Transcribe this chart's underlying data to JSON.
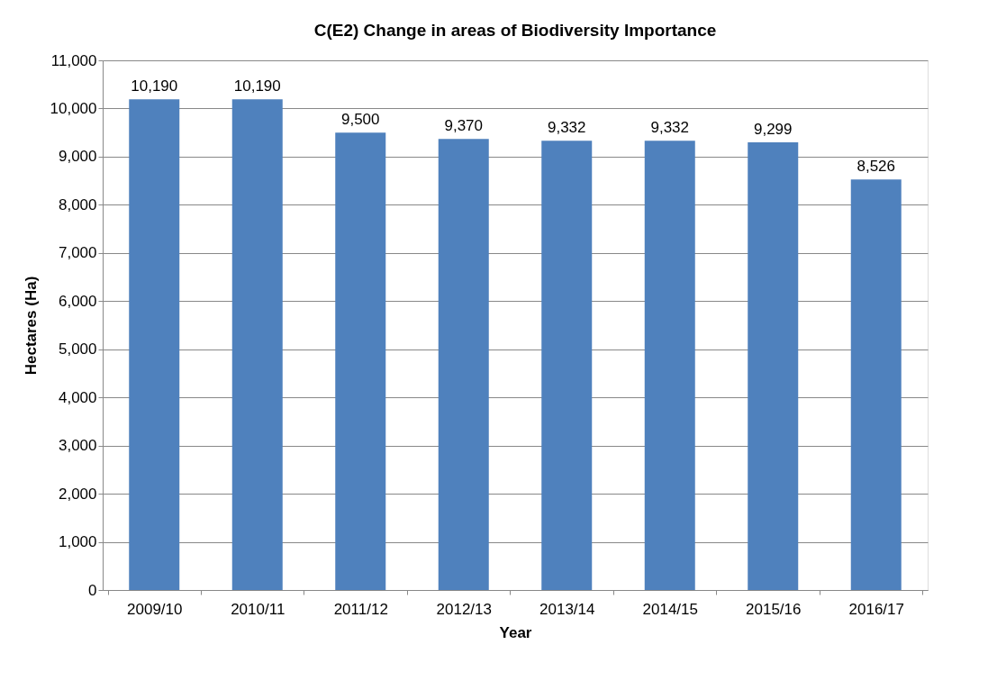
{
  "chart_data": {
    "type": "bar",
    "title": "C(E2) Change in areas of Biodiversity Importance",
    "xlabel": "Year",
    "ylabel": "Hectares (Ha)",
    "categories": [
      "2009/10",
      "2010/11",
      "2011/12",
      "2012/13",
      "2013/14",
      "2014/15",
      "2015/16",
      "2016/17"
    ],
    "values": [
      10190,
      10190,
      9500,
      9370,
      9332,
      9332,
      9299,
      8526
    ],
    "color": "#4f81bd",
    "ylim": [
      0,
      11000
    ],
    "yticks": [
      {
        "value": 0,
        "label": "0"
      },
      {
        "value": 1000,
        "label": "1,000"
      },
      {
        "value": 2000,
        "label": "2,000"
      },
      {
        "value": 3000,
        "label": "3,000"
      },
      {
        "value": 4000,
        "label": "4,000"
      },
      {
        "value": 5000,
        "label": "5,000"
      },
      {
        "value": 6000,
        "label": "6,000"
      },
      {
        "value": 7000,
        "label": "7,000"
      },
      {
        "value": 8000,
        "label": "8,000"
      },
      {
        "value": 9000,
        "label": "9,000"
      },
      {
        "value": 10000,
        "label": "10,000"
      },
      {
        "value": 11000,
        "label": "11,000"
      }
    ],
    "value_labels": [
      "10,190",
      "10,190",
      "9,500",
      "9,370",
      "9,332",
      "9,332",
      "9,299",
      "8,526"
    ],
    "grid": "y"
  }
}
